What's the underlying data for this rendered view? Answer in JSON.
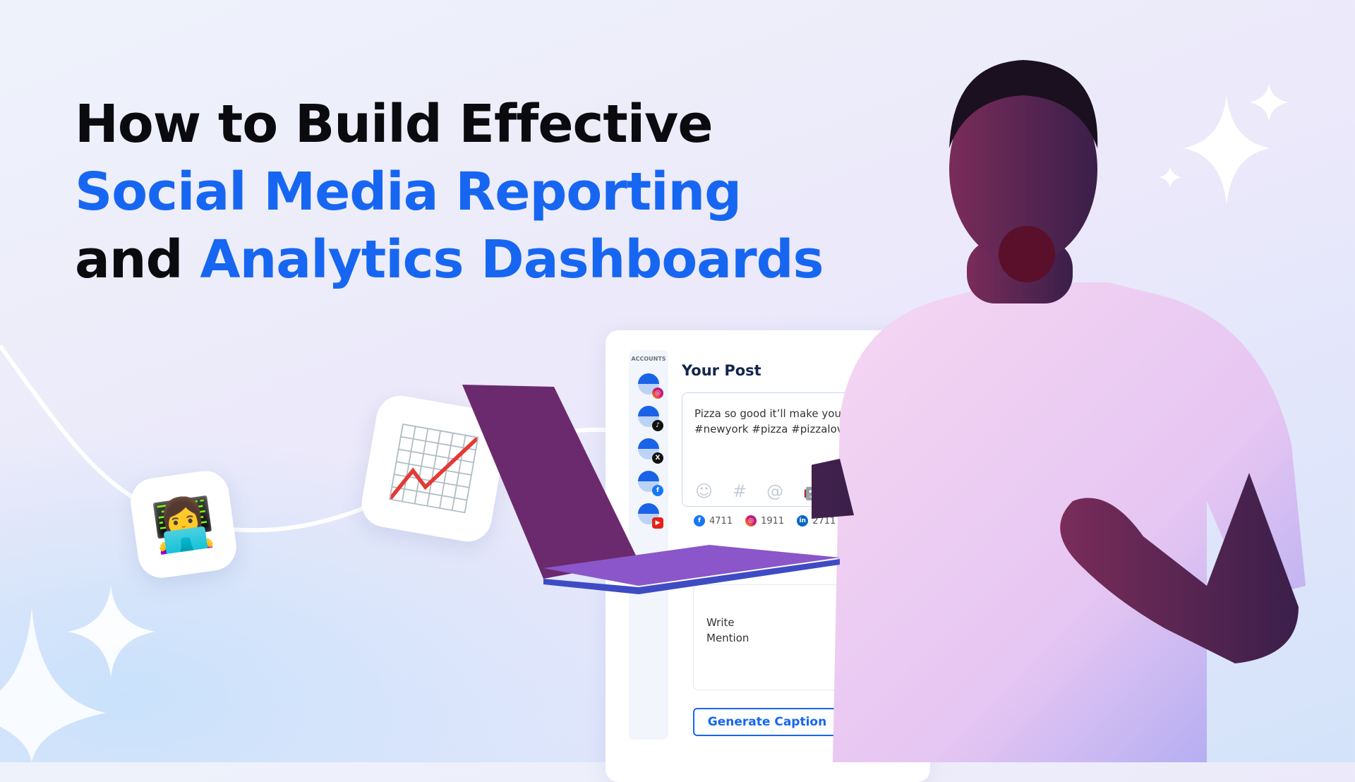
{
  "headline": {
    "line1": "How to Build Effective",
    "line2": "Social Media Reporting",
    "line3_black": "and",
    "line3_blue": "Analytics Dashboards"
  },
  "colors": {
    "accent": "#1766f2",
    "dark": "#0b0b0f"
  },
  "tiles": [
    {
      "icon": "woman-technologist-emoji",
      "glyph": "👩‍💻"
    },
    {
      "icon": "chart-increasing-emoji",
      "glyph": "📈"
    }
  ],
  "dashboard": {
    "accounts_label": "ACCOUNTS",
    "accounts": [
      {
        "network": "instagram"
      },
      {
        "network": "tiktok"
      },
      {
        "network": "x"
      },
      {
        "network": "facebook"
      },
      {
        "network": "youtube"
      }
    ],
    "post_title": "Your Post",
    "post_text_line1": "Pizza so good it’ll make you",
    "post_text_line2": "#newyork #pizza #pizzalov",
    "tools": [
      "emoji-icon",
      "hashtag-icon",
      "mention-icon",
      "ai-robot-icon"
    ],
    "counts": [
      {
        "network": "facebook",
        "value": "4711"
      },
      {
        "network": "instagram",
        "value": "1911"
      },
      {
        "network": "linkedin",
        "value": "2711"
      },
      {
        "network": "x",
        "value": ""
      }
    ],
    "prompt_line1": "Write",
    "prompt_line2": "Mention",
    "generate_label": "Generate Caption"
  }
}
